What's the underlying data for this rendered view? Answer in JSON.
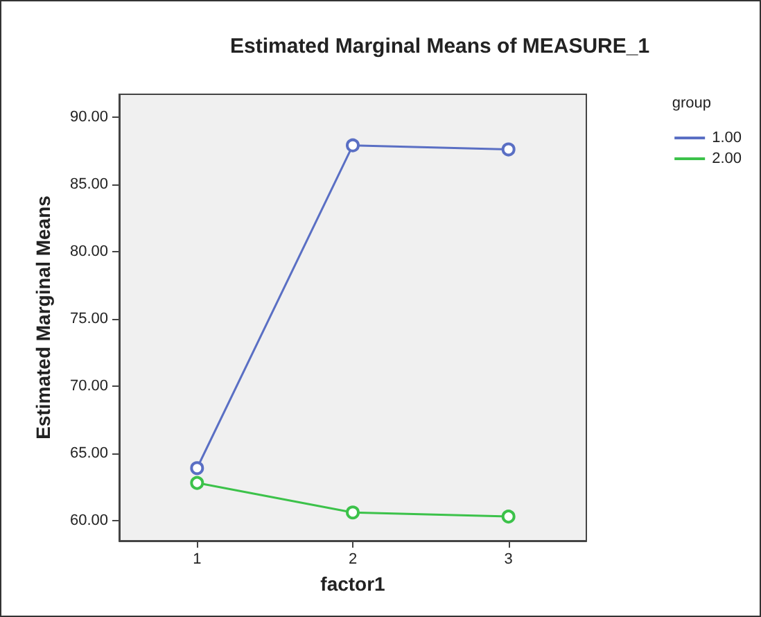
{
  "chart_data": {
    "type": "line",
    "title": "Estimated Marginal Means of MEASURE_1",
    "xlabel": "factor1",
    "ylabel": "Estimated Marginal Means",
    "legend_title": "group",
    "categories": [
      "1",
      "2",
      "3"
    ],
    "series": [
      {
        "name": "1.00",
        "color": "#5a6fc4",
        "values": [
          63.9,
          87.9,
          87.6
        ]
      },
      {
        "name": "2.00",
        "color": "#3cc24a",
        "values": [
          62.8,
          60.6,
          60.3
        ]
      }
    ],
    "ylim": [
      58.5,
      91.7
    ],
    "yticks": [
      {
        "value": 60,
        "label": "60.00"
      },
      {
        "value": 65,
        "label": "65.00"
      },
      {
        "value": 70,
        "label": "70.00"
      },
      {
        "value": 75,
        "label": "75.00"
      },
      {
        "value": 80,
        "label": "80.00"
      },
      {
        "value": 85,
        "label": "85.00"
      },
      {
        "value": 90,
        "label": "90.00"
      }
    ],
    "grid": false,
    "legend": "top right",
    "marker": "circle",
    "line_style": "solid"
  }
}
